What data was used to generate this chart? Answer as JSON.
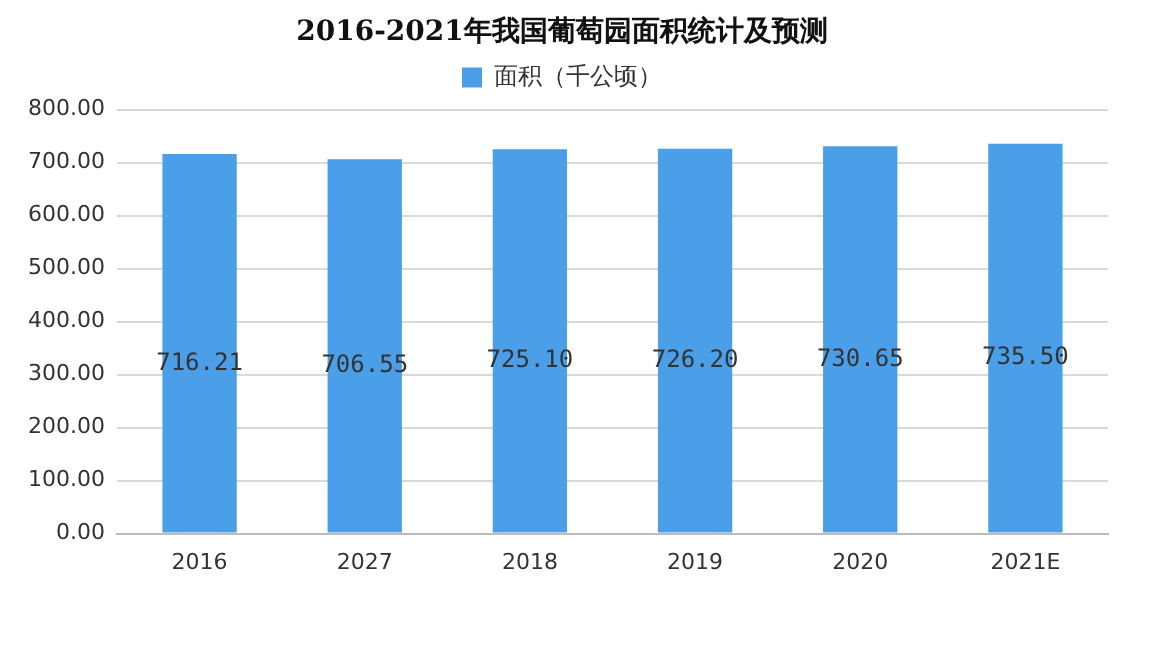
{
  "chart_data": {
    "type": "bar",
    "title": "2016-2021年我国葡萄园面积统计及预测",
    "categories": [
      "2016",
      "2027",
      "2018",
      "2019",
      "2020",
      "2021E"
    ],
    "series": [
      {
        "name": "面积（千公顷）",
        "color": "#4a9fe8",
        "values": [
          716.21,
          706.55,
          725.1,
          726.2,
          730.65,
          735.5
        ],
        "value_labels": [
          "716.21",
          "706.55",
          "725.10",
          "726.20",
          "730.65",
          "735.50"
        ]
      }
    ],
    "ylim": [
      0,
      800
    ],
    "yticks": [
      {
        "value": 0,
        "label": "0.00"
      },
      {
        "value": 100,
        "label": "100.00"
      },
      {
        "value": 200,
        "label": "200.00"
      },
      {
        "value": 300,
        "label": "300.00"
      },
      {
        "value": 400,
        "label": "400.00"
      },
      {
        "value": 500,
        "label": "500.00"
      },
      {
        "value": 600,
        "label": "600.00"
      },
      {
        "value": 700,
        "label": "700.00"
      },
      {
        "value": 800,
        "label": "800.00"
      }
    ],
    "grid": "y",
    "legend": "top"
  }
}
